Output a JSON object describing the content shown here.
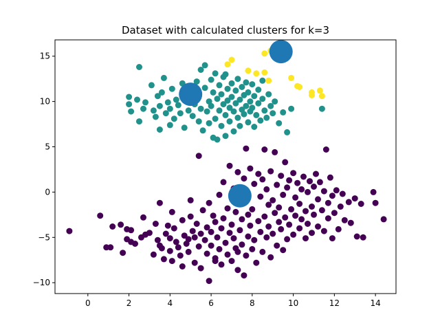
{
  "chart_data": {
    "type": "scatter",
    "title": "Dataset with calculated clusters for k=3",
    "xlabel": "",
    "ylabel": "",
    "xlim": [
      -1.6,
      15.0
    ],
    "ylim": [
      -11.2,
      16.8
    ],
    "xticks": [
      0,
      2,
      4,
      6,
      8,
      10,
      12,
      14
    ],
    "yticks": [
      -10,
      -5,
      0,
      5,
      10,
      15
    ],
    "grid": false,
    "legend": "none",
    "series": [
      {
        "color": "#440154",
        "points": [
          [
            -0.9,
            -4.3
          ],
          [
            0.6,
            -2.6
          ],
          [
            0.9,
            -6.1
          ],
          [
            1.1,
            -6.1
          ],
          [
            1.2,
            -3.8
          ],
          [
            1.6,
            -3.6
          ],
          [
            1.7,
            -6.7
          ],
          [
            1.9,
            -4.1
          ],
          [
            1.9,
            -5.2
          ],
          [
            2.1,
            -4.2
          ],
          [
            2.1,
            -5.5
          ],
          [
            2.3,
            -5.7
          ],
          [
            2.6,
            -5.0
          ],
          [
            2.7,
            -2.8
          ],
          [
            2.8,
            -4.7
          ],
          [
            3.0,
            -4.5
          ],
          [
            3.2,
            -6.9
          ],
          [
            3.3,
            -3.5
          ],
          [
            3.4,
            -5.3
          ],
          [
            3.5,
            -1.2
          ],
          [
            3.5,
            -5.9
          ],
          [
            3.6,
            -6.2
          ],
          [
            3.7,
            -7.4
          ],
          [
            3.8,
            -4.6
          ],
          [
            3.9,
            -3.7
          ],
          [
            4.0,
            -5.1
          ],
          [
            4.0,
            -6.5
          ],
          [
            4.1,
            -7.6
          ],
          [
            4.1,
            -2.2
          ],
          [
            4.2,
            -4.0
          ],
          [
            4.3,
            -5.5
          ],
          [
            4.4,
            -6.1
          ],
          [
            4.5,
            -7.0
          ],
          [
            4.6,
            -3.1
          ],
          [
            4.6,
            -8.2
          ],
          [
            4.7,
            -4.8
          ],
          [
            4.8,
            -5.7
          ],
          [
            4.9,
            -6.6
          ],
          [
            5.0,
            -0.9
          ],
          [
            5.0,
            -2.7
          ],
          [
            5.1,
            -4.3
          ],
          [
            5.2,
            -5.0
          ],
          [
            5.2,
            -7.8
          ],
          [
            5.3,
            -3.5
          ],
          [
            5.4,
            4.0
          ],
          [
            5.4,
            -6.0
          ],
          [
            5.5,
            -4.6
          ],
          [
            5.5,
            -8.4
          ],
          [
            5.6,
            -2.0
          ],
          [
            5.7,
            -5.3
          ],
          [
            5.8,
            -3.9
          ],
          [
            5.8,
            -6.8
          ],
          [
            5.9,
            -1.2
          ],
          [
            5.9,
            -9.8
          ],
          [
            6.0,
            -4.4
          ],
          [
            6.0,
            -5.9
          ],
          [
            6.1,
            -2.6
          ],
          [
            6.2,
            -7.3
          ],
          [
            6.2,
            -3.3
          ],
          [
            6.3,
            -5.0
          ],
          [
            6.4,
            -6.3
          ],
          [
            6.4,
            -0.3
          ],
          [
            6.5,
            -4.0
          ],
          [
            6.5,
            -8.0
          ],
          [
            6.6,
            1.1
          ],
          [
            6.6,
            -2.9
          ],
          [
            6.7,
            -5.6
          ],
          [
            6.8,
            -6.9
          ],
          [
            6.8,
            -1.8
          ],
          [
            6.9,
            2.9
          ],
          [
            6.9,
            -4.5
          ],
          [
            7.0,
            -3.6
          ],
          [
            7.0,
            -7.6
          ],
          [
            7.1,
            -5.1
          ],
          [
            7.1,
            0.4
          ],
          [
            7.2,
            -2.2
          ],
          [
            7.2,
            -6.2
          ],
          [
            7.3,
            2.2
          ],
          [
            7.3,
            -8.6
          ],
          [
            7.4,
            -4.2
          ],
          [
            7.4,
            -1.3
          ],
          [
            7.5,
            -3.0
          ],
          [
            7.5,
            -5.8
          ],
          [
            7.6,
            -9.2
          ],
          [
            7.6,
            1.5
          ],
          [
            7.7,
            4.8
          ],
          [
            7.7,
            -0.7
          ],
          [
            7.7,
            -7.0
          ],
          [
            7.8,
            -2.5
          ],
          [
            7.8,
            -4.9
          ],
          [
            7.9,
            2.6
          ],
          [
            7.9,
            -3.7
          ],
          [
            8.0,
            -6.3
          ],
          [
            8.0,
            -1.9
          ],
          [
            8.1,
            0.9
          ],
          [
            8.1,
            -5.3
          ],
          [
            8.2,
            -7.8
          ],
          [
            8.3,
            -3.2
          ],
          [
            8.3,
            2.0
          ],
          [
            8.4,
            -0.5
          ],
          [
            8.4,
            -4.4
          ],
          [
            8.5,
            -6.6
          ],
          [
            8.5,
            1.4
          ],
          [
            8.6,
            -2.7
          ],
          [
            8.6,
            4.7
          ],
          [
            8.7,
            -5.0
          ],
          [
            8.7,
            0.3
          ],
          [
            8.8,
            -3.8
          ],
          [
            8.8,
            -1.4
          ],
          [
            8.9,
            -7.2
          ],
          [
            8.9,
            2.3
          ],
          [
            9.0,
            -4.6
          ],
          [
            9.0,
            -0.9
          ],
          [
            9.1,
            -2.3
          ],
          [
            9.1,
            4.4
          ],
          [
            9.2,
            -5.9
          ],
          [
            9.2,
            0.8
          ],
          [
            9.3,
            -3.3
          ],
          [
            9.3,
            -1.7
          ],
          [
            9.4,
            1.8
          ],
          [
            9.4,
            -4.1
          ],
          [
            9.5,
            -6.4
          ],
          [
            9.5,
            -0.3
          ],
          [
            9.6,
            -2.8
          ],
          [
            9.6,
            3.3
          ],
          [
            9.7,
            -5.2
          ],
          [
            9.7,
            0.5
          ],
          [
            9.8,
            -3.6
          ],
          [
            9.8,
            1.3
          ],
          [
            9.9,
            -1.9
          ],
          [
            10.0,
            -4.7
          ],
          [
            10.0,
            2.1
          ],
          [
            10.1,
            -0.6
          ],
          [
            10.1,
            -2.6
          ],
          [
            10.2,
            1.0
          ],
          [
            10.3,
            -4.0
          ],
          [
            10.3,
            -1.3
          ],
          [
            10.4,
            0.3
          ],
          [
            10.4,
            -3.0
          ],
          [
            10.5,
            1.7
          ],
          [
            10.6,
            -2.1
          ],
          [
            10.6,
            -5.1
          ],
          [
            10.7,
            0.0
          ],
          [
            10.7,
            -3.5
          ],
          [
            10.8,
            1.2
          ],
          [
            10.9,
            -1.6
          ],
          [
            10.9,
            -4.5
          ],
          [
            11.0,
            0.6
          ],
          [
            11.0,
            -2.5
          ],
          [
            11.1,
            2.0
          ],
          [
            11.2,
            -0.8
          ],
          [
            11.2,
            -3.8
          ],
          [
            11.3,
            1.1
          ],
          [
            11.4,
            -2.0
          ],
          [
            11.5,
            -4.3
          ],
          [
            11.5,
            0.1
          ],
          [
            11.6,
            4.7
          ],
          [
            11.7,
            -1.2
          ],
          [
            11.7,
            -2.9
          ],
          [
            11.8,
            1.6
          ],
          [
            11.9,
            -5.1
          ],
          [
            11.9,
            -0.4
          ],
          [
            12.0,
            -2.3
          ],
          [
            12.1,
            0.2
          ],
          [
            12.2,
            -4.1
          ],
          [
            12.3,
            -1.6
          ],
          [
            12.4,
            -0.2
          ],
          [
            12.5,
            -3.1
          ],
          [
            12.7,
            -1.1
          ],
          [
            12.8,
            -3.4
          ],
          [
            13.0,
            -0.7
          ],
          [
            13.1,
            -4.9
          ],
          [
            13.3,
            -1.3
          ],
          [
            13.4,
            -5.0
          ],
          [
            13.9,
            0.0
          ],
          [
            14.0,
            -1.2
          ],
          [
            14.4,
            -3.0
          ],
          [
            6.2,
            -7.6
          ],
          [
            4.9,
            -5.2
          ],
          [
            7.3,
            -6.6
          ]
        ]
      },
      {
        "color": "#21918c",
        "points": [
          [
            2.0,
            10.5
          ],
          [
            2.0,
            9.7
          ],
          [
            2.1,
            8.9
          ],
          [
            2.4,
            10.2
          ],
          [
            2.5,
            13.8
          ],
          [
            2.5,
            7.8
          ],
          [
            2.7,
            9.2
          ],
          [
            2.8,
            9.9
          ],
          [
            3.1,
            11.8
          ],
          [
            3.2,
            9.0
          ],
          [
            3.3,
            8.3
          ],
          [
            3.4,
            10.6
          ],
          [
            3.5,
            9.5
          ],
          [
            3.5,
            6.9
          ],
          [
            3.6,
            11.0
          ],
          [
            3.7,
            12.6
          ],
          [
            3.8,
            8.7
          ],
          [
            3.9,
            9.9
          ],
          [
            4.0,
            7.4
          ],
          [
            4.0,
            9.2
          ],
          [
            4.1,
            11.4
          ],
          [
            4.2,
            8.1
          ],
          [
            4.3,
            10.2
          ],
          [
            4.4,
            9.6
          ],
          [
            4.5,
            8.7
          ],
          [
            4.6,
            12.0
          ],
          [
            4.7,
            7.1
          ],
          [
            4.8,
            10.4
          ],
          [
            4.9,
            9.0
          ],
          [
            5.0,
            11.3
          ],
          [
            5.1,
            8.4
          ],
          [
            5.2,
            9.7
          ],
          [
            5.3,
            12.2
          ],
          [
            5.4,
            7.8
          ],
          [
            5.4,
            10.8
          ],
          [
            5.5,
            13.5
          ],
          [
            5.5,
            9.2
          ],
          [
            5.6,
            6.8
          ],
          [
            5.7,
            11.5
          ],
          [
            5.7,
            14.0
          ],
          [
            5.8,
            8.9
          ],
          [
            5.9,
            10.0
          ],
          [
            5.9,
            7.6
          ],
          [
            6.0,
            12.4
          ],
          [
            6.0,
            9.5
          ],
          [
            6.1,
            11.0
          ],
          [
            6.2,
            8.1
          ],
          [
            6.2,
            13.1
          ],
          [
            6.3,
            10.3
          ],
          [
            6.3,
            5.8
          ],
          [
            6.4,
            9.0
          ],
          [
            6.4,
            11.8
          ],
          [
            6.5,
            7.3
          ],
          [
            6.5,
            10.8
          ],
          [
            6.6,
            9.7
          ],
          [
            6.6,
            12.7
          ],
          [
            6.7,
            8.5
          ],
          [
            6.7,
            6.2
          ],
          [
            6.8,
            10.1
          ],
          [
            6.8,
            11.4
          ],
          [
            6.9,
            9.3
          ],
          [
            6.9,
            7.8
          ],
          [
            7.0,
            12.0
          ],
          [
            7.0,
            10.5
          ],
          [
            7.1,
            8.9
          ],
          [
            7.1,
            6.7
          ],
          [
            7.2,
            11.2
          ],
          [
            7.2,
            9.8
          ],
          [
            7.3,
            8.2
          ],
          [
            7.3,
            12.5
          ],
          [
            7.4,
            10.2
          ],
          [
            7.4,
            7.3
          ],
          [
            7.5,
            9.1
          ],
          [
            7.5,
            11.6
          ],
          [
            7.6,
            8.6
          ],
          [
            7.6,
            10.7
          ],
          [
            7.7,
            12.1
          ],
          [
            7.7,
            9.5
          ],
          [
            7.8,
            7.7
          ],
          [
            7.8,
            11.0
          ],
          [
            7.9,
            8.9
          ],
          [
            7.9,
            10.0
          ],
          [
            8.0,
            11.9
          ],
          [
            8.0,
            9.3
          ],
          [
            8.1,
            7.2
          ],
          [
            8.1,
            10.6
          ],
          [
            8.2,
            8.5
          ],
          [
            8.3,
            11.3
          ],
          [
            8.3,
            9.8
          ],
          [
            8.4,
            7.9
          ],
          [
            8.5,
            10.3
          ],
          [
            8.5,
            12.3
          ],
          [
            8.6,
            9.0
          ],
          [
            8.7,
            8.2
          ],
          [
            8.8,
            10.8
          ],
          [
            8.9,
            9.5
          ],
          [
            9.0,
            8.7
          ],
          [
            9.1,
            10.0
          ],
          [
            9.3,
            7.6
          ],
          [
            9.5,
            8.8
          ],
          [
            9.7,
            6.6
          ],
          [
            9.9,
            9.2
          ],
          [
            11.4,
            9.2
          ],
          [
            6.1,
            6.0
          ],
          [
            6.7,
            13.0
          ]
        ]
      },
      {
        "color": "#fde725",
        "points": [
          [
            6.8,
            14.1
          ],
          [
            7.0,
            14.6
          ],
          [
            7.8,
            13.4
          ],
          [
            8.2,
            13.1
          ],
          [
            8.6,
            13.2
          ],
          [
            8.6,
            15.3
          ],
          [
            8.9,
            15.6
          ],
          [
            9.9,
            12.6
          ],
          [
            10.2,
            11.7
          ],
          [
            10.9,
            11.0
          ],
          [
            10.9,
            10.7
          ],
          [
            11.3,
            11.2
          ],
          [
            11.4,
            10.6
          ],
          [
            10.3,
            11.6
          ],
          [
            8.8,
            12.3
          ]
        ]
      },
      {
        "color": "#1f77b4",
        "role": "centroids",
        "points": [
          [
            5.0,
            10.8
          ],
          [
            9.4,
            15.5
          ],
          [
            7.4,
            -0.4
          ]
        ]
      }
    ]
  }
}
